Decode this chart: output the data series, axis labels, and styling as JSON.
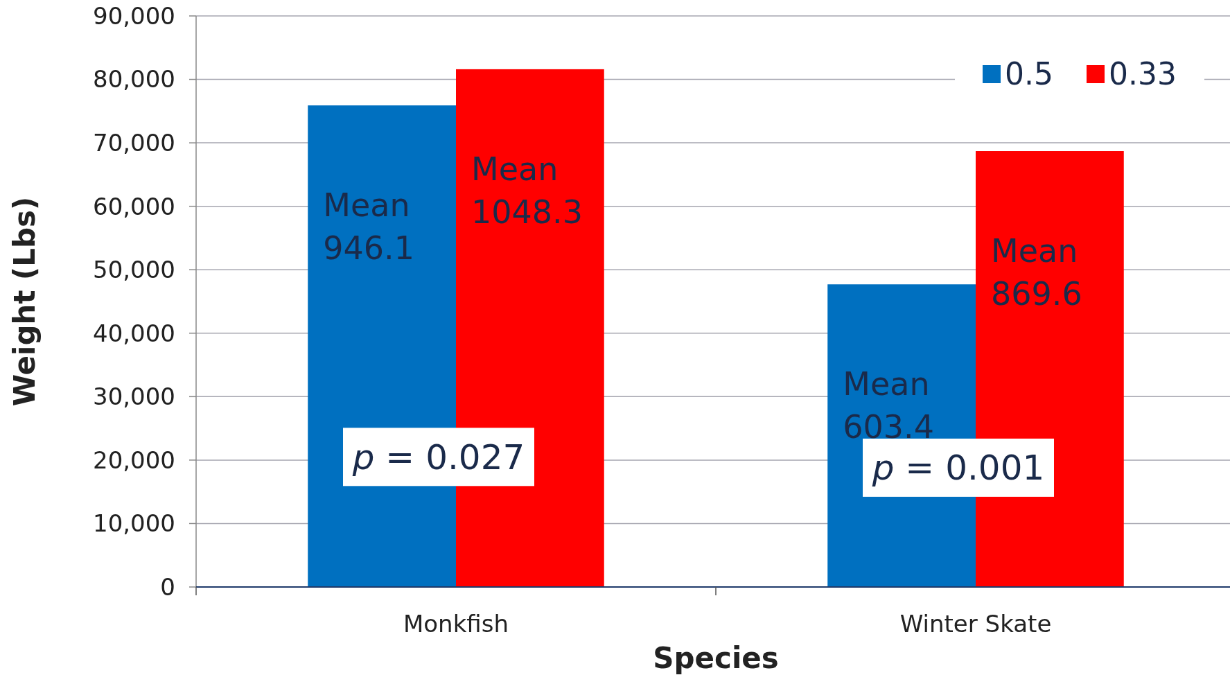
{
  "chart_data": {
    "type": "bar",
    "xlabel": "Species",
    "ylabel": "Weight (Lbs)",
    "categories": [
      "Monkfish",
      "Winter Skate"
    ],
    "series": [
      {
        "name": "0.5",
        "color": "#0070c0",
        "values": [
          75900,
          47700
        ],
        "value_labels": [
          "Mean 946.1",
          "Mean 603.4"
        ]
      },
      {
        "name": "0.33",
        "color": "#ff0000",
        "values": [
          81600,
          68700
        ],
        "value_labels": [
          "Mean 1048.3",
          "Mean 869.6"
        ]
      }
    ],
    "ylim": [
      0,
      90000
    ],
    "yticks": [
      {
        "value": 0,
        "label": "0"
      },
      {
        "value": 10000,
        "label": "10,000"
      },
      {
        "value": 20000,
        "label": "20,000"
      },
      {
        "value": 30000,
        "label": "30,000"
      },
      {
        "value": 40000,
        "label": "40,000"
      },
      {
        "value": 50000,
        "label": "50,000"
      },
      {
        "value": 60000,
        "label": "60,000"
      },
      {
        "value": 70000,
        "label": "70,000"
      },
      {
        "value": 80000,
        "label": "80,000"
      },
      {
        "value": 90000,
        "label": "90,000"
      }
    ],
    "grid": "y",
    "legend": "top right",
    "annotations": [
      {
        "text": "p = 0.027",
        "x": "Monkfish",
        "y": 20500
      },
      {
        "text": "p = 0.001",
        "x": "Winter Skate",
        "y": 18800
      }
    ]
  }
}
